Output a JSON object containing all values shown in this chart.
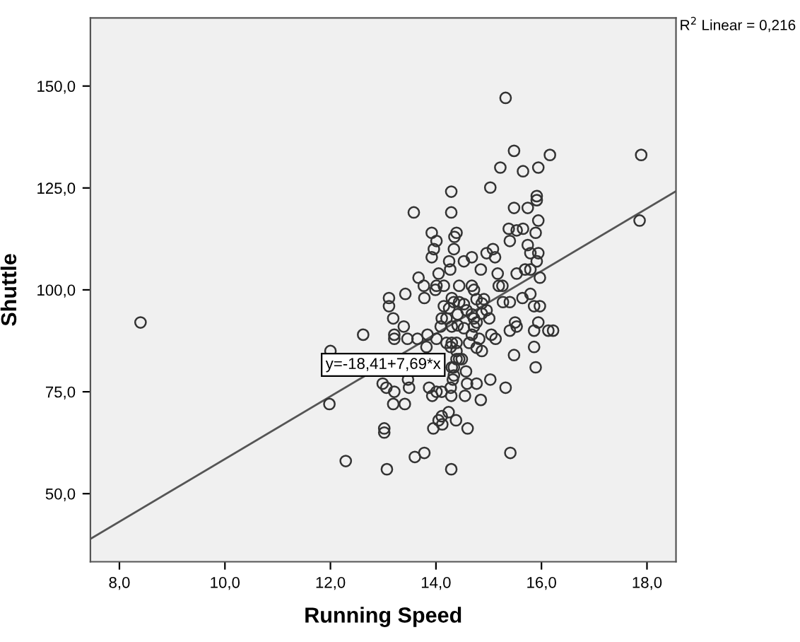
{
  "chart_data": {
    "type": "scatter",
    "xlabel": "Running Speed",
    "ylabel": "Shuttle",
    "xlim": [
      7.45,
      18.55
    ],
    "ylim": [
      33.3,
      166.7
    ],
    "xticks": [
      {
        "value": 8,
        "label": "8,0"
      },
      {
        "value": 10,
        "label": "10,0"
      },
      {
        "value": 12,
        "label": "12,0"
      },
      {
        "value": 14,
        "label": "14,0"
      },
      {
        "value": 16,
        "label": "16,0"
      },
      {
        "value": 18,
        "label": "18,0"
      }
    ],
    "yticks": [
      {
        "value": 50,
        "label": "50,0"
      },
      {
        "value": 75,
        "label": "75,0"
      },
      {
        "value": 100,
        "label": "100,0"
      },
      {
        "value": 125,
        "label": "125,0"
      },
      {
        "value": 150,
        "label": "150,0"
      }
    ],
    "grid": false,
    "marker": "circle",
    "annotations": [
      "R$^{2}$ Linear = 0,216",
      {
        "text": "y=-18,41+7,69*x",
        "x": 13.0,
        "y": 81.6
      }
    ],
    "series": [
      {
        "color": "#333333",
        "x": [
          8.4,
          15.32,
          15.48,
          16.16,
          17.89,
          15.22,
          15.65,
          15.94,
          15.03,
          14.29,
          15.91,
          15.91,
          13.58,
          14.29,
          15.48,
          15.74,
          15.94,
          17.86,
          13.92,
          14.39,
          15.38,
          15.53,
          15.65,
          15.89,
          15.4,
          14.01,
          14.35,
          15.74,
          13.96,
          14.34,
          15.08,
          15.79,
          15.94,
          13.92,
          14.68,
          14.96,
          15.12,
          15.91,
          14.25,
          14.53,
          14.85,
          15.69,
          15.79,
          15.53,
          14.05,
          15.17,
          13.67,
          15.97,
          14.27,
          13.77,
          14.01,
          14.15,
          14.44,
          14.68,
          15.19,
          15.26,
          13.42,
          13.99,
          15.79,
          13.11,
          13.78,
          15.64,
          13.11,
          14.15,
          14.87,
          15.86,
          15.97,
          15.27,
          15.4,
          13.19,
          14.11,
          14.41,
          14.68,
          15.01,
          13.39,
          14.09,
          14.3,
          14.72,
          15.5,
          15.94,
          12.62,
          13.21,
          13.84,
          14.68,
          15.05,
          15.4,
          15.53,
          15.86,
          16.13,
          16.22,
          13.21,
          13.46,
          13.65,
          14.01,
          14.82,
          15.13,
          14.3,
          14.2,
          14.39,
          12.0,
          13.82,
          14.39,
          14.87,
          15.86,
          14.49,
          15.48,
          14.34,
          14.57,
          15.89,
          14.32,
          13.47,
          15.03,
          12.99,
          14.59,
          14.77,
          13.06,
          13.49,
          13.87,
          14.28,
          15.32,
          13.21,
          14.01,
          14.11,
          13.93,
          14.29,
          14.55,
          11.98,
          13.19,
          13.41,
          14.85,
          14.24,
          14.11,
          14.05,
          14.38,
          13.02,
          13.02,
          13.95,
          14.6,
          14.12,
          15.41,
          13.78,
          13.6,
          12.29,
          13.07,
          14.29,
          14.3,
          14.34,
          14.39,
          14.28,
          14.34,
          14.44,
          14.53,
          14.58,
          14.77,
          14.91,
          14.96,
          14.72,
          14.53,
          14.63,
          14.77,
          14.44,
          14.25,
          14.3,
          14.72,
          14.87,
          14.77,
          14.2,
          14.41
        ],
        "values": [
          92,
          147.1,
          134.1,
          133.1,
          133.1,
          130,
          129.1,
          130,
          125.1,
          124.1,
          123,
          122,
          119,
          119,
          120.1,
          120.1,
          117,
          117,
          114,
          114,
          115,
          114.6,
          115,
          114,
          112,
          112,
          113,
          111,
          110,
          110,
          110,
          109,
          109,
          108,
          108,
          109,
          108,
          107,
          107,
          107,
          105,
          105,
          105,
          104,
          104,
          104,
          103,
          103,
          105,
          101,
          101,
          101,
          101,
          101,
          101,
          101,
          99,
          100,
          99,
          98,
          98,
          98,
          96,
          96,
          96.7,
          96,
          96,
          97,
          97,
          93,
          93,
          94,
          94,
          93,
          91,
          91,
          91,
          91,
          92,
          92,
          89,
          89,
          89,
          89,
          89,
          90,
          91,
          90,
          90,
          90,
          88,
          88,
          88,
          88,
          88,
          88,
          87,
          87,
          87,
          85,
          86,
          85,
          85,
          86,
          83,
          84,
          81,
          80,
          81,
          78,
          78,
          78,
          77,
          77,
          77,
          76,
          76,
          76,
          76,
          76,
          75,
          75,
          75,
          74,
          74,
          74,
          72,
          72,
          72,
          73,
          70,
          69,
          68,
          68,
          66,
          65,
          66,
          66,
          67,
          60,
          60,
          59,
          58,
          56,
          56,
          81,
          79,
          83,
          86,
          97,
          97,
          96.5,
          95,
          97.7,
          97.7,
          95,
          93,
          90.6,
          87,
          85.8,
          83,
          95.5,
          98,
          100,
          94.2,
          92,
          93,
          91.3
        ]
      },
      {
        "type": "line",
        "marker": "none",
        "color": "#555555",
        "x": [
          7.45,
          18.55
        ],
        "values": [
          38.9,
          124.2
        ]
      }
    ]
  }
}
